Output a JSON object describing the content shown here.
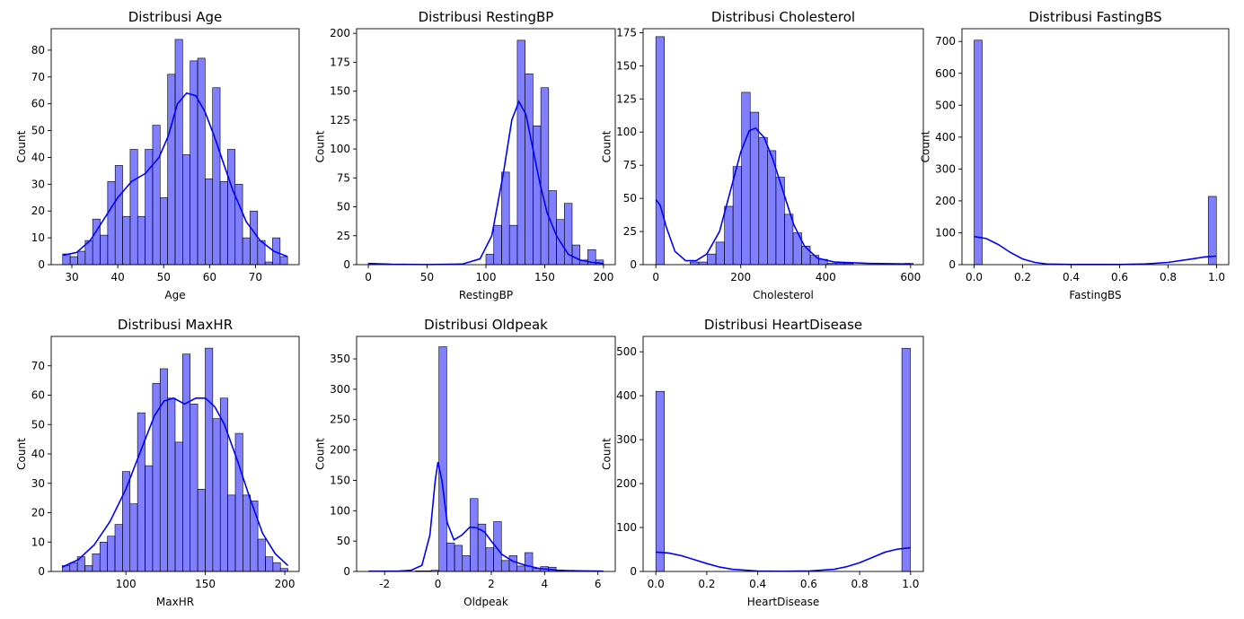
{
  "chart_data": [
    {
      "type": "bar",
      "title": "Distribusi Age",
      "xlabel": "Age",
      "ylabel": "Count",
      "color": "#0000ff",
      "xlim": [
        25.5,
        79.5
      ],
      "ylim": [
        0,
        88
      ],
      "xticks": [
        30,
        40,
        50,
        60,
        70
      ],
      "yticks": [
        0,
        10,
        20,
        30,
        40,
        50,
        60,
        70,
        80
      ],
      "bin_start": 28,
      "bin_width": 1.633,
      "values": [
        4,
        3,
        5,
        9,
        17,
        11,
        31,
        37,
        18,
        43,
        18,
        43,
        52,
        25,
        71,
        84,
        41,
        76,
        77,
        32,
        66,
        31,
        43,
        30,
        10,
        20,
        9,
        1,
        10,
        3
      ],
      "kde": [
        [
          28,
          3.5
        ],
        [
          31,
          4.5
        ],
        [
          34,
          9
        ],
        [
          37,
          17
        ],
        [
          40,
          25
        ],
        [
          43,
          31
        ],
        [
          46,
          34
        ],
        [
          49,
          40
        ],
        [
          51,
          48
        ],
        [
          53,
          60
        ],
        [
          55,
          64
        ],
        [
          57,
          63
        ],
        [
          59,
          57
        ],
        [
          61,
          48
        ],
        [
          63,
          38
        ],
        [
          65,
          28
        ],
        [
          68,
          16
        ],
        [
          71,
          9
        ],
        [
          74,
          5
        ],
        [
          77,
          3
        ]
      ]
    },
    {
      "type": "bar",
      "title": "Distribusi RestingBP",
      "xlabel": "RestingBP",
      "ylabel": "Count",
      "color": "#0000ff",
      "xlim": [
        -10,
        210
      ],
      "ylim": [
        0,
        204
      ],
      "xticks": [
        0,
        50,
        100,
        150,
        200
      ],
      "yticks": [
        0,
        25,
        50,
        75,
        100,
        125,
        150,
        175,
        200
      ],
      "bin_start": 0,
      "bin_width": 6.667,
      "values": [
        1,
        0,
        0,
        0,
        0,
        0,
        0,
        0,
        0,
        0,
        0,
        0,
        0,
        0,
        0,
        9,
        34,
        80,
        34,
        194,
        165,
        120,
        153,
        64,
        39,
        53,
        17,
        4,
        13,
        4
      ],
      "kde": [
        [
          0,
          1
        ],
        [
          20,
          0.3
        ],
        [
          50,
          0.1
        ],
        [
          80,
          0.5
        ],
        [
          95,
          5
        ],
        [
          105,
          25
        ],
        [
          115,
          80
        ],
        [
          122,
          125
        ],
        [
          128,
          141
        ],
        [
          134,
          130
        ],
        [
          140,
          100
        ],
        [
          146,
          70
        ],
        [
          152,
          45
        ],
        [
          160,
          25
        ],
        [
          170,
          9
        ],
        [
          180,
          4
        ],
        [
          190,
          2
        ],
        [
          200,
          1
        ]
      ]
    },
    {
      "type": "bar",
      "title": "Distribusi Cholesterol",
      "xlabel": "Cholesterol",
      "ylabel": "Count",
      "color": "#0000ff",
      "xlim": [
        -30,
        630
      ],
      "ylim": [
        0,
        178
      ],
      "xticks": [
        0,
        200,
        400,
        600
      ],
      "yticks": [
        0,
        25,
        50,
        75,
        100,
        125,
        150,
        175
      ],
      "bin_start": 0,
      "bin_width": 20.2,
      "values": [
        172,
        0,
        0,
        0,
        2,
        2,
        8,
        17,
        44,
        74,
        130,
        115,
        96,
        86,
        66,
        38,
        24,
        14,
        7,
        4,
        1,
        1,
        1,
        0,
        0,
        0,
        0,
        0,
        0,
        1
      ],
      "kde": [
        [
          0,
          49
        ],
        [
          10,
          45
        ],
        [
          25,
          28
        ],
        [
          45,
          10
        ],
        [
          70,
          3
        ],
        [
          95,
          3
        ],
        [
          120,
          8
        ],
        [
          150,
          25
        ],
        [
          175,
          55
        ],
        [
          200,
          85
        ],
        [
          220,
          101
        ],
        [
          235,
          103
        ],
        [
          255,
          96
        ],
        [
          275,
          80
        ],
        [
          300,
          55
        ],
        [
          325,
          30
        ],
        [
          350,
          14
        ],
        [
          380,
          5
        ],
        [
          420,
          2
        ],
        [
          500,
          1
        ],
        [
          600,
          0.5
        ]
      ]
    },
    {
      "type": "bar",
      "title": "Distribusi FastingBS",
      "xlabel": "FastingBS",
      "ylabel": "Count",
      "color": "#0000ff",
      "xlim": [
        -0.05,
        1.05
      ],
      "ylim": [
        0,
        740
      ],
      "xticks": [
        0.0,
        0.2,
        0.4,
        0.6,
        0.8,
        1.0
      ],
      "yticks": [
        0,
        100,
        200,
        300,
        400,
        500,
        600,
        700
      ],
      "bin_start": 0,
      "bin_width": 0.0333,
      "values": [
        704,
        0,
        0,
        0,
        0,
        0,
        0,
        0,
        0,
        0,
        0,
        0,
        0,
        0,
        0,
        0,
        0,
        0,
        0,
        0,
        0,
        0,
        0,
        0,
        0,
        0,
        0,
        0,
        0,
        214
      ],
      "kde": [
        [
          0,
          88
        ],
        [
          0.05,
          82
        ],
        [
          0.1,
          63
        ],
        [
          0.15,
          38
        ],
        [
          0.2,
          18
        ],
        [
          0.25,
          7
        ],
        [
          0.3,
          2
        ],
        [
          0.4,
          0.5
        ],
        [
          0.6,
          0.5
        ],
        [
          0.7,
          2
        ],
        [
          0.8,
          7
        ],
        [
          0.9,
          18
        ],
        [
          0.95,
          24
        ],
        [
          1.0,
          27
        ]
      ]
    },
    {
      "type": "bar",
      "title": "Distribusi MaxHR",
      "xlabel": "MaxHR",
      "ylabel": "Count",
      "color": "#0000ff",
      "xlim": [
        53,
        209
      ],
      "ylim": [
        0,
        80
      ],
      "xticks": [
        100,
        150,
        200
      ],
      "yticks": [
        0,
        10,
        20,
        30,
        40,
        50,
        60,
        70
      ],
      "bin_start": 60,
      "bin_width": 4.733,
      "values": [
        2,
        3,
        5,
        2,
        6,
        10,
        12,
        16,
        34,
        23,
        54,
        36,
        64,
        69,
        59,
        44,
        74,
        57,
        28,
        76,
        52,
        59,
        26,
        47,
        26,
        24,
        11,
        5,
        3,
        1
      ],
      "kde": [
        [
          60,
          1.5
        ],
        [
          70,
          4
        ],
        [
          80,
          9
        ],
        [
          90,
          17
        ],
        [
          100,
          28
        ],
        [
          110,
          42
        ],
        [
          118,
          53
        ],
        [
          124,
          58
        ],
        [
          130,
          59
        ],
        [
          137,
          57
        ],
        [
          144,
          59
        ],
        [
          150,
          59
        ],
        [
          156,
          56
        ],
        [
          162,
          50
        ],
        [
          170,
          38
        ],
        [
          178,
          25
        ],
        [
          186,
          13
        ],
        [
          194,
          6
        ],
        [
          202,
          2
        ]
      ]
    },
    {
      "type": "bar",
      "title": "Distribusi Oldpeak",
      "xlabel": "Oldpeak",
      "ylabel": "Count",
      "color": "#0000ff",
      "xlim": [
        -3.05,
        6.65
      ],
      "ylim": [
        0,
        387
      ],
      "xticks": [
        -2,
        0,
        2,
        4,
        6
      ],
      "yticks": [
        0,
        50,
        100,
        150,
        200,
        250,
        300,
        350
      ],
      "bin_start": -2.6,
      "bin_width": 0.293,
      "values": [
        0,
        0,
        0,
        0,
        0,
        0,
        1,
        1,
        2,
        370,
        47,
        43,
        26,
        120,
        78,
        39,
        82,
        18,
        26,
        9,
        31,
        5,
        8,
        7,
        2,
        0,
        0,
        0,
        0,
        1
      ],
      "kde": [
        [
          -2.6,
          0.5
        ],
        [
          -1.5,
          0.5
        ],
        [
          -1.0,
          2
        ],
        [
          -0.6,
          10
        ],
        [
          -0.3,
          60
        ],
        [
          -0.1,
          150
        ],
        [
          0.0,
          180
        ],
        [
          0.15,
          150
        ],
        [
          0.35,
          80
        ],
        [
          0.6,
          52
        ],
        [
          0.9,
          60
        ],
        [
          1.2,
          73
        ],
        [
          1.45,
          72
        ],
        [
          1.75,
          65
        ],
        [
          2.0,
          50
        ],
        [
          2.4,
          28
        ],
        [
          2.8,
          17
        ],
        [
          3.3,
          10
        ],
        [
          3.8,
          5
        ],
        [
          4.5,
          2
        ],
        [
          5.2,
          1
        ],
        [
          6.2,
          0.5
        ]
      ]
    },
    {
      "type": "bar",
      "title": "Distribusi HeartDisease",
      "xlabel": "HeartDisease",
      "ylabel": "Count",
      "color": "#0000ff",
      "xlim": [
        -0.05,
        1.05
      ],
      "ylim": [
        0,
        535
      ],
      "xticks": [
        0.0,
        0.2,
        0.4,
        0.6,
        0.8,
        1.0
      ],
      "yticks": [
        0,
        100,
        200,
        300,
        400,
        500
      ],
      "bin_start": 0,
      "bin_width": 0.0333,
      "values": [
        410,
        0,
        0,
        0,
        0,
        0,
        0,
        0,
        0,
        0,
        0,
        0,
        0,
        0,
        0,
        0,
        0,
        0,
        0,
        0,
        0,
        0,
        0,
        0,
        0,
        0,
        0,
        0,
        0,
        508
      ],
      "kde": [
        [
          0,
          44
        ],
        [
          0.05,
          42
        ],
        [
          0.1,
          36
        ],
        [
          0.15,
          27
        ],
        [
          0.2,
          18
        ],
        [
          0.25,
          10
        ],
        [
          0.3,
          5
        ],
        [
          0.4,
          1
        ],
        [
          0.5,
          0.5
        ],
        [
          0.6,
          1
        ],
        [
          0.7,
          5
        ],
        [
          0.75,
          11
        ],
        [
          0.8,
          20
        ],
        [
          0.85,
          32
        ],
        [
          0.9,
          44
        ],
        [
          0.95,
          51
        ],
        [
          1.0,
          54
        ]
      ]
    }
  ]
}
